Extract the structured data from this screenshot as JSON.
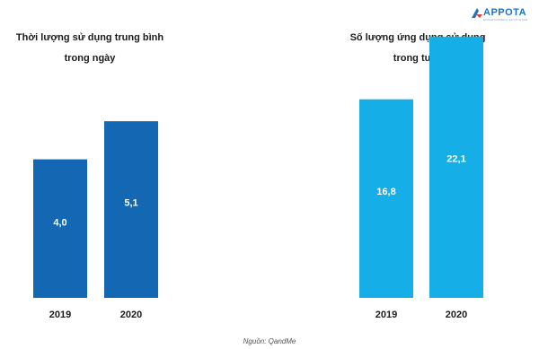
{
  "logo": {
    "text": "APPOTA",
    "tagline": "ENTERTAINMENT ECOSYSTEM"
  },
  "source_note": "Nguồn: QandMe",
  "chart_data": [
    {
      "type": "bar",
      "title_lines": [
        "Thời lượng sử dụng trung bình",
        "trong ngày"
      ],
      "categories": [
        "2019",
        "2020"
      ],
      "values": [
        4.0,
        5.1
      ],
      "value_labels": [
        "4,0",
        "5,1"
      ],
      "ylim": [
        0,
        8.6
      ],
      "color": "#1468b3",
      "label_color": "#ffffff"
    },
    {
      "type": "bar",
      "title_lines": [
        "Số lượng ứng dụng sử dụng",
        "trong tuần"
      ],
      "categories": [
        "2019",
        "2020"
      ],
      "values": [
        16.8,
        22.1
      ],
      "value_labels": [
        "16,8",
        "22,1"
      ],
      "ylim": [
        0,
        25.2
      ],
      "color": "#15aee6",
      "label_color": "#ffffff"
    }
  ]
}
